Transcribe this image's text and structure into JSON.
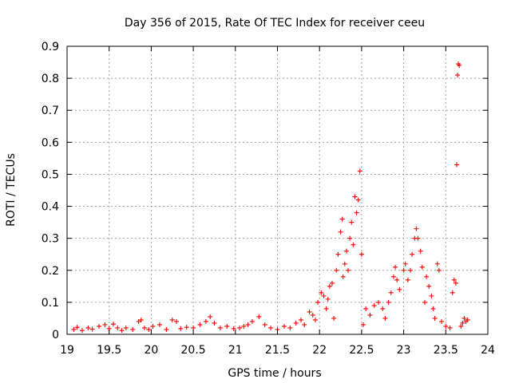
{
  "chart_data": {
    "type": "scatter",
    "title": "Day 356 of 2015, Rate Of TEC Index for receiver ceeu",
    "xlabel": "GPS time / hours",
    "ylabel": "ROTI / TECUs",
    "xlim": [
      19,
      24
    ],
    "ylim": [
      0,
      0.9
    ],
    "xticks": [
      "19",
      "19.5",
      "20",
      "20.5",
      "21",
      "21.5",
      "22",
      "22.5",
      "23",
      "23.5",
      "24"
    ],
    "yticks": [
      "0",
      "0.1",
      "0.2",
      "0.3",
      "0.4",
      "0.5",
      "0.6",
      "0.7",
      "0.8",
      "0.9"
    ],
    "grid": true,
    "marker": "plus",
    "color": "#ff0000",
    "series": [
      {
        "points": [
          [
            19.08,
            0.015
          ],
          [
            19.12,
            0.022
          ],
          [
            19.18,
            0.012
          ],
          [
            19.25,
            0.02
          ],
          [
            19.3,
            0.016
          ],
          [
            19.38,
            0.025
          ],
          [
            19.45,
            0.03
          ],
          [
            19.5,
            0.018
          ],
          [
            19.55,
            0.032
          ],
          [
            19.6,
            0.02
          ],
          [
            19.65,
            0.012
          ],
          [
            19.7,
            0.02
          ],
          [
            19.78,
            0.015
          ],
          [
            19.85,
            0.04
          ],
          [
            19.88,
            0.045
          ],
          [
            19.92,
            0.02
          ],
          [
            19.97,
            0.015
          ],
          [
            20.02,
            0.025
          ],
          [
            20.1,
            0.03
          ],
          [
            20.18,
            0.015
          ],
          [
            20.25,
            0.045
          ],
          [
            20.3,
            0.04
          ],
          [
            20.35,
            0.018
          ],
          [
            20.42,
            0.022
          ],
          [
            20.5,
            0.02
          ],
          [
            20.58,
            0.03
          ],
          [
            20.65,
            0.04
          ],
          [
            20.7,
            0.055
          ],
          [
            20.75,
            0.035
          ],
          [
            20.82,
            0.02
          ],
          [
            20.9,
            0.025
          ],
          [
            20.98,
            0.018
          ],
          [
            21.05,
            0.02
          ],
          [
            21.1,
            0.025
          ],
          [
            21.15,
            0.03
          ],
          [
            21.2,
            0.04
          ],
          [
            21.28,
            0.055
          ],
          [
            21.35,
            0.03
          ],
          [
            21.42,
            0.02
          ],
          [
            21.5,
            0.015
          ],
          [
            21.58,
            0.025
          ],
          [
            21.65,
            0.02
          ],
          [
            21.72,
            0.035
          ],
          [
            21.78,
            0.045
          ],
          [
            21.82,
            0.03
          ],
          [
            21.88,
            0.07
          ],
          [
            21.92,
            0.06
          ],
          [
            21.95,
            0.045
          ],
          [
            21.98,
            0.1
          ],
          [
            22.02,
            0.13
          ],
          [
            22.05,
            0.12
          ],
          [
            22.08,
            0.08
          ],
          [
            22.1,
            0.11
          ],
          [
            22.12,
            0.15
          ],
          [
            22.15,
            0.16
          ],
          [
            22.17,
            0.05
          ],
          [
            22.2,
            0.2
          ],
          [
            22.22,
            0.25
          ],
          [
            22.25,
            0.32
          ],
          [
            22.27,
            0.36
          ],
          [
            22.28,
            0.18
          ],
          [
            22.3,
            0.22
          ],
          [
            22.32,
            0.26
          ],
          [
            22.34,
            0.2
          ],
          [
            22.36,
            0.3
          ],
          [
            22.38,
            0.35
          ],
          [
            22.4,
            0.28
          ],
          [
            22.42,
            0.43
          ],
          [
            22.44,
            0.38
          ],
          [
            22.46,
            0.42
          ],
          [
            22.48,
            0.51
          ],
          [
            22.5,
            0.25
          ],
          [
            22.52,
            0.03
          ],
          [
            22.55,
            0.08
          ],
          [
            22.6,
            0.06
          ],
          [
            22.65,
            0.09
          ],
          [
            22.7,
            0.1
          ],
          [
            22.75,
            0.08
          ],
          [
            22.78,
            0.05
          ],
          [
            22.82,
            0.1
          ],
          [
            22.85,
            0.13
          ],
          [
            22.88,
            0.18
          ],
          [
            22.9,
            0.21
          ],
          [
            22.92,
            0.17
          ],
          [
            22.95,
            0.14
          ],
          [
            23.0,
            0.2
          ],
          [
            23.02,
            0.22
          ],
          [
            23.05,
            0.17
          ],
          [
            23.08,
            0.2
          ],
          [
            23.1,
            0.25
          ],
          [
            23.13,
            0.3
          ],
          [
            23.15,
            0.33
          ],
          [
            23.17,
            0.3
          ],
          [
            23.2,
            0.26
          ],
          [
            23.22,
            0.21
          ],
          [
            23.25,
            0.1
          ],
          [
            23.27,
            0.18
          ],
          [
            23.3,
            0.15
          ],
          [
            23.33,
            0.12
          ],
          [
            23.35,
            0.08
          ],
          [
            23.37,
            0.05
          ],
          [
            23.4,
            0.22
          ],
          [
            23.42,
            0.2
          ],
          [
            23.45,
            0.04
          ],
          [
            23.5,
            0.025
          ],
          [
            23.55,
            0.02
          ],
          [
            23.58,
            0.13
          ],
          [
            23.6,
            0.17
          ],
          [
            23.62,
            0.16
          ],
          [
            23.63,
            0.53
          ],
          [
            23.64,
            0.81
          ],
          [
            23.65,
            0.845
          ],
          [
            23.66,
            0.84
          ],
          [
            23.68,
            0.025
          ],
          [
            23.7,
            0.035
          ],
          [
            23.72,
            0.05
          ],
          [
            23.74,
            0.04
          ],
          [
            23.76,
            0.045
          ]
        ]
      }
    ]
  }
}
